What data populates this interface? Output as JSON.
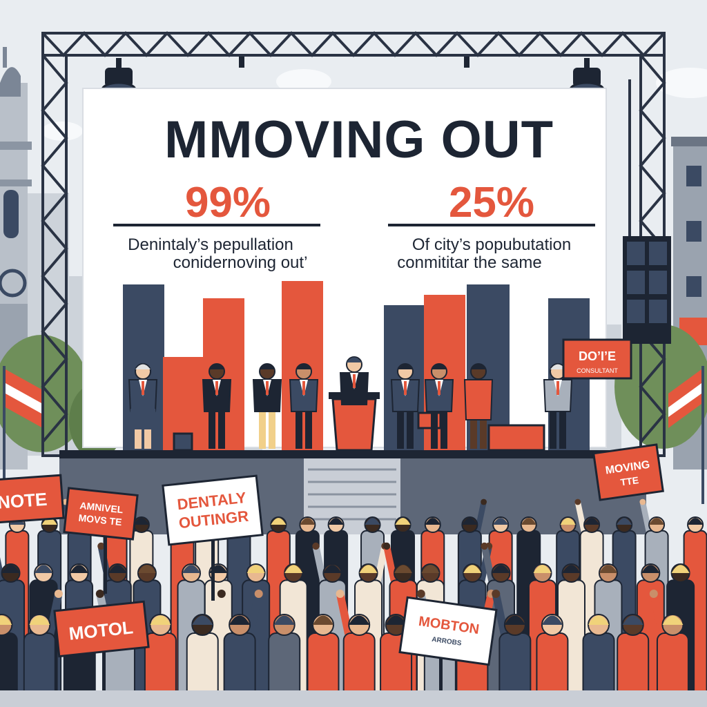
{
  "colors": {
    "sky": "#e9edf1",
    "navy": "#3b4a63",
    "orange": "#e4573d",
    "ink": "#1d2533",
    "gray": "#a8b0bb"
  },
  "billboard": {
    "headline": "MMOVING OUT",
    "left": {
      "percent": "99%",
      "line1": "Denintaly’s pepullation",
      "line2": "conidernoving out’"
    },
    "right": {
      "percent": "25%",
      "line1": "Of city’s popubutation",
      "line2": "conmititar the same"
    }
  },
  "bar_chart": {
    "type": "bar",
    "left_group": [
      {
        "color": "navy",
        "value": 48
      },
      {
        "color": "orange",
        "value": 27
      },
      {
        "color": "orange",
        "value": 44
      },
      {
        "color": "orange",
        "value": 49
      }
    ],
    "right_group": [
      {
        "color": "navy",
        "value": 42
      },
      {
        "color": "orange",
        "value": 45
      },
      {
        "color": "navy",
        "value": 48
      },
      {
        "color": "navy",
        "value": 44
      }
    ]
  },
  "stage_sign": {
    "line1": "DO’I’E",
    "line2": "CONSULTANT"
  },
  "protest_signs": [
    {
      "line1": "NOTE",
      "line2": ""
    },
    {
      "line1": "AMNIVEL",
      "line2": "MOVS TE"
    },
    {
      "line1": "DENTALY",
      "line2": "OUTINGR"
    },
    {
      "line1": "MOVING",
      "line2": "TTE"
    },
    {
      "line1": "MOTOL",
      "line2": ""
    },
    {
      "line1": "MOBTON",
      "line2": "ARROBS"
    }
  ]
}
